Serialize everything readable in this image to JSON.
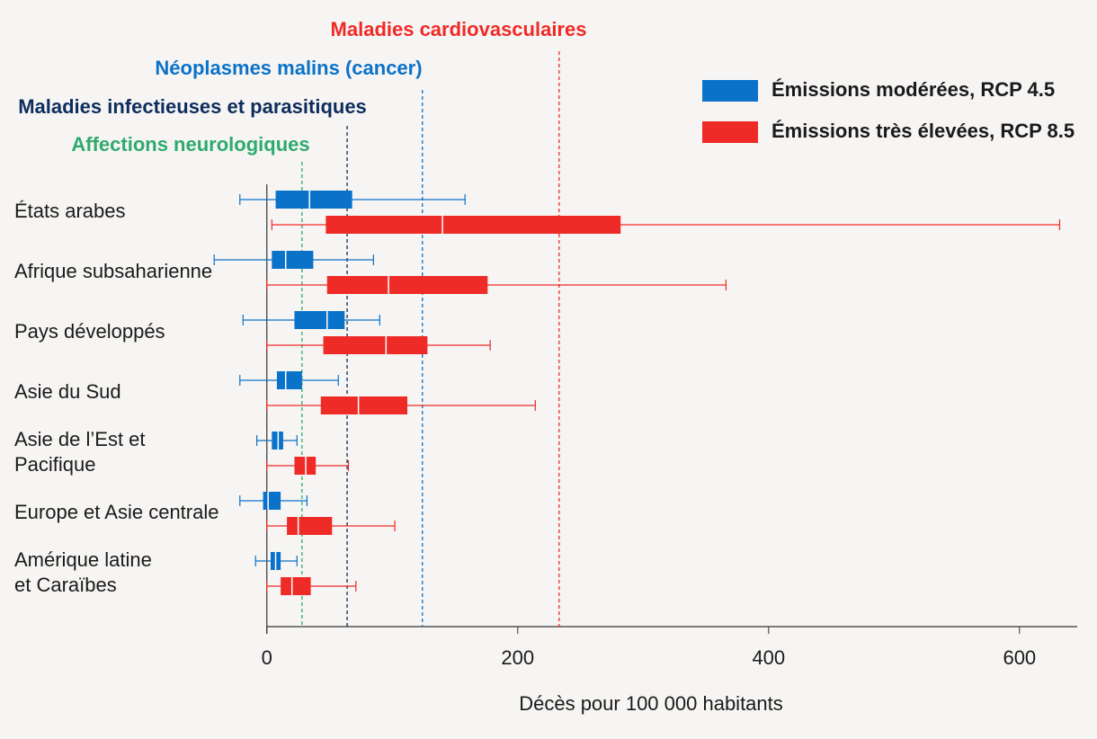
{
  "chart_data": {
    "type": "boxplot",
    "xlabel": "Décès pour 100 000 habitants",
    "categories": [
      [
        "États arabes"
      ],
      [
        "Afrique subsaharienne"
      ],
      [
        "Pays développés"
      ],
      [
        "Asie du Sud"
      ],
      [
        "Asie de l’Est et",
        "Pacifique"
      ],
      [
        "Europe et Asie centrale"
      ],
      [
        "Amérique latine",
        "et Caraïbes"
      ]
    ],
    "series": [
      {
        "name": "Émissions modérées, RCP 4.5",
        "color": "#0a72c8",
        "min": [
          -21.5,
          -42,
          -19,
          -21.5,
          -8,
          -21.5,
          -9
        ],
        "q1": [
          7,
          4,
          22,
          8,
          4,
          -3,
          3
        ],
        "median": [
          34,
          15,
          48,
          15,
          9,
          1,
          7
        ],
        "q3": [
          68,
          37,
          62,
          28,
          13,
          11,
          11
        ],
        "max": [
          158,
          85,
          90,
          57,
          24,
          32,
          24
        ]
      },
      {
        "name": "Émissions très élevées, RCP 8.5",
        "color": "#ee2b27",
        "min": [
          4,
          0,
          0,
          0,
          0,
          0,
          0
        ],
        "q1": [
          47,
          48,
          45,
          43,
          22,
          16,
          11
        ],
        "median": [
          140,
          97,
          95,
          73,
          31,
          25,
          20
        ],
        "q3": [
          282,
          176,
          128,
          112,
          39,
          52,
          35
        ],
        "max": [
          632,
          366,
          178,
          214,
          65,
          102,
          71
        ]
      }
    ],
    "reference_lines": [
      {
        "label": "Affections neurologiques",
        "value": 28,
        "color": "#2eaa6e"
      },
      {
        "label": "Maladies infectieuses et parasitiques",
        "value": 64,
        "color": "#0d2d5e"
      },
      {
        "label": "Néoplasmes malins (cancer)",
        "value": 124,
        "color": "#0a72c8"
      },
      {
        "label": "Maladies cardiovasculaires",
        "value": 233,
        "color": "#ee2b27"
      }
    ],
    "xlim": [
      -45,
      646
    ],
    "xticks": [
      0,
      200,
      400,
      600
    ],
    "legend": "upper right"
  }
}
